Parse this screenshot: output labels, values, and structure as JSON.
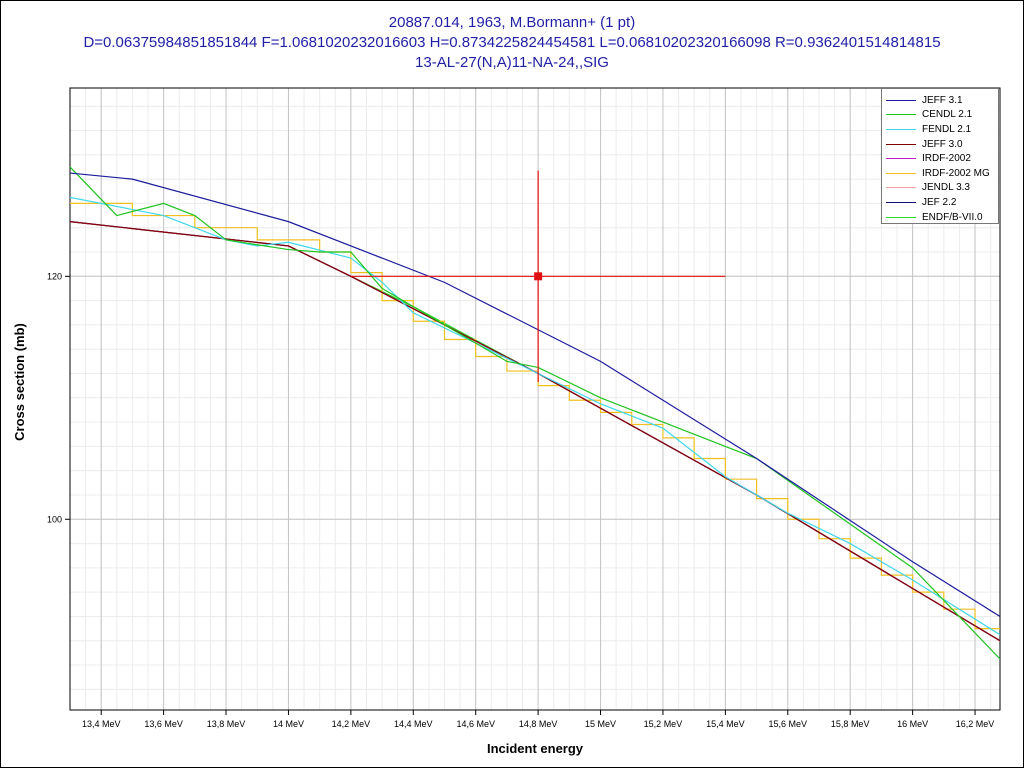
{
  "title": {
    "line1": "20887.014, 1963, M.Bormann+ (1 pt)",
    "line2": "D=0.06375984851851844 F=1.0681020232016603 H=0.8734225824454581 L=0.06810202320166098 R=0.9362401514814815",
    "line3": "13-AL-27(N,A)11-NA-24,,SIG"
  },
  "chart_data": {
    "type": "line",
    "title": "20887.014, 1963, M.Bormann+ (1 pt)",
    "xlabel": "Incident energy",
    "ylabel": "Cross section (mb)",
    "xlim": [
      13.3,
      16.28
    ],
    "ylim": [
      84.3,
      135.5
    ],
    "x_ticks": [
      13.4,
      13.6,
      13.8,
      14.0,
      14.2,
      14.4,
      14.6,
      14.8,
      15.0,
      15.2,
      15.4,
      15.6,
      15.8,
      16.0,
      16.2
    ],
    "x_tick_labels": [
      "13,4 MeV",
      "13,6 MeV",
      "13,8 MeV",
      "14 MeV",
      "14,2 MeV",
      "14,4 MeV",
      "14,6 MeV",
      "14,8 MeV",
      "15 MeV",
      "15,2 MeV",
      "15,4 MeV",
      "15,6 MeV",
      "15,8 MeV",
      "16 MeV",
      "16,2 MeV"
    ],
    "y_ticks": [
      100,
      120
    ],
    "y_tick_labels": [
      "100",
      "120"
    ],
    "grid": true,
    "legend_position": "top-right",
    "series": [
      {
        "name": "JEFF 3.1",
        "color": "#1c1c9c",
        "x": [
          13.3,
          13.5,
          14.0,
          14.5,
          15.0,
          15.5,
          16.0,
          16.28
        ],
        "y": [
          128.5,
          128.0,
          124.5,
          119.5,
          113.0,
          105.0,
          96.5,
          92.0
        ]
      },
      {
        "name": "CENDL 2.1",
        "color": "#1fc41f",
        "x": [
          13.3,
          13.45,
          13.6,
          13.7,
          13.8,
          14.0,
          14.1,
          14.2,
          14.3,
          14.5,
          14.7,
          14.8,
          15.0,
          15.2,
          15.4,
          15.5,
          16.0,
          16.28
        ],
        "y": [
          129.0,
          125.0,
          126.0,
          125.0,
          123.0,
          122.2,
          122.0,
          122.0,
          119.0,
          116.0,
          113.0,
          112.5,
          110.0,
          108.0,
          106.0,
          105.0,
          96.0,
          88.5
        ]
      },
      {
        "name": "FENDL 2.1",
        "color": "#3fd7ee",
        "x": [
          13.3,
          13.6,
          13.8,
          13.9,
          14.0,
          14.2,
          14.3,
          14.4,
          14.6,
          14.8,
          15.0,
          15.2,
          15.4,
          15.6,
          15.8,
          16.0,
          16.28
        ],
        "y": [
          126.5,
          125.0,
          123.0,
          122.5,
          122.8,
          121.5,
          119.5,
          117.0,
          114.5,
          112.0,
          109.5,
          107.5,
          103.5,
          100.5,
          98.0,
          95.0,
          90.5
        ]
      },
      {
        "name": "JEFF 3.0",
        "color": "#800000",
        "x": [
          13.3,
          14.0,
          14.2,
          14.8,
          15.5,
          16.28
        ],
        "y": [
          124.5,
          122.5,
          120.0,
          112.0,
          102.0,
          90.0
        ]
      },
      {
        "name": "IRDF-2002",
        "color": "#c020c0",
        "x": [
          13.3,
          14.0,
          14.2,
          14.8,
          15.5,
          16.28
        ],
        "y": [
          124.5,
          122.5,
          120.0,
          112.0,
          102.0,
          90.0
        ]
      },
      {
        "name": "IRDF-2002 MG",
        "color": "#f0c020",
        "step": true,
        "x": [
          13.3,
          13.5,
          13.7,
          13.9,
          14.1,
          14.2,
          14.3,
          14.4,
          14.5,
          14.6,
          14.7,
          14.8,
          14.9,
          15.0,
          15.1,
          15.2,
          15.3,
          15.4,
          15.5,
          15.6,
          15.7,
          15.8,
          15.9,
          16.0,
          16.1,
          16.2,
          16.28
        ],
        "y": [
          126.0,
          125.0,
          124.0,
          123.0,
          122.0,
          120.3,
          118.0,
          116.3,
          114.8,
          113.4,
          112.2,
          111.0,
          109.8,
          108.8,
          107.8,
          106.7,
          105.0,
          103.3,
          101.7,
          100.0,
          98.4,
          96.8,
          95.4,
          94.0,
          92.6,
          91.0,
          91.0
        ]
      },
      {
        "name": "JENDL 3.3",
        "color": "#f2a0a0",
        "x": [
          13.3,
          14.0,
          14.2,
          14.8,
          15.5,
          16.28
        ],
        "y": [
          124.5,
          122.5,
          120.0,
          112.0,
          102.0,
          90.0
        ]
      },
      {
        "name": "JEF 2.2",
        "color": "#101070",
        "x": [
          13.3,
          14.0,
          14.2,
          14.8,
          15.5,
          16.28
        ],
        "y": [
          124.5,
          122.5,
          120.0,
          112.0,
          102.0,
          90.0
        ]
      },
      {
        "name": "ENDF/B-VII.0",
        "color": "#22dd22",
        "x": [
          13.3,
          14.0,
          14.4,
          14.8,
          15.5,
          16.28
        ],
        "y": [
          124.5,
          122.5,
          117.5,
          112.0,
          102.0,
          90.0
        ]
      }
    ],
    "experimental_point": {
      "x": 14.8,
      "y": 120.0,
      "x_err": 0.6,
      "y_err": 8.7,
      "color": "#e01010"
    }
  }
}
